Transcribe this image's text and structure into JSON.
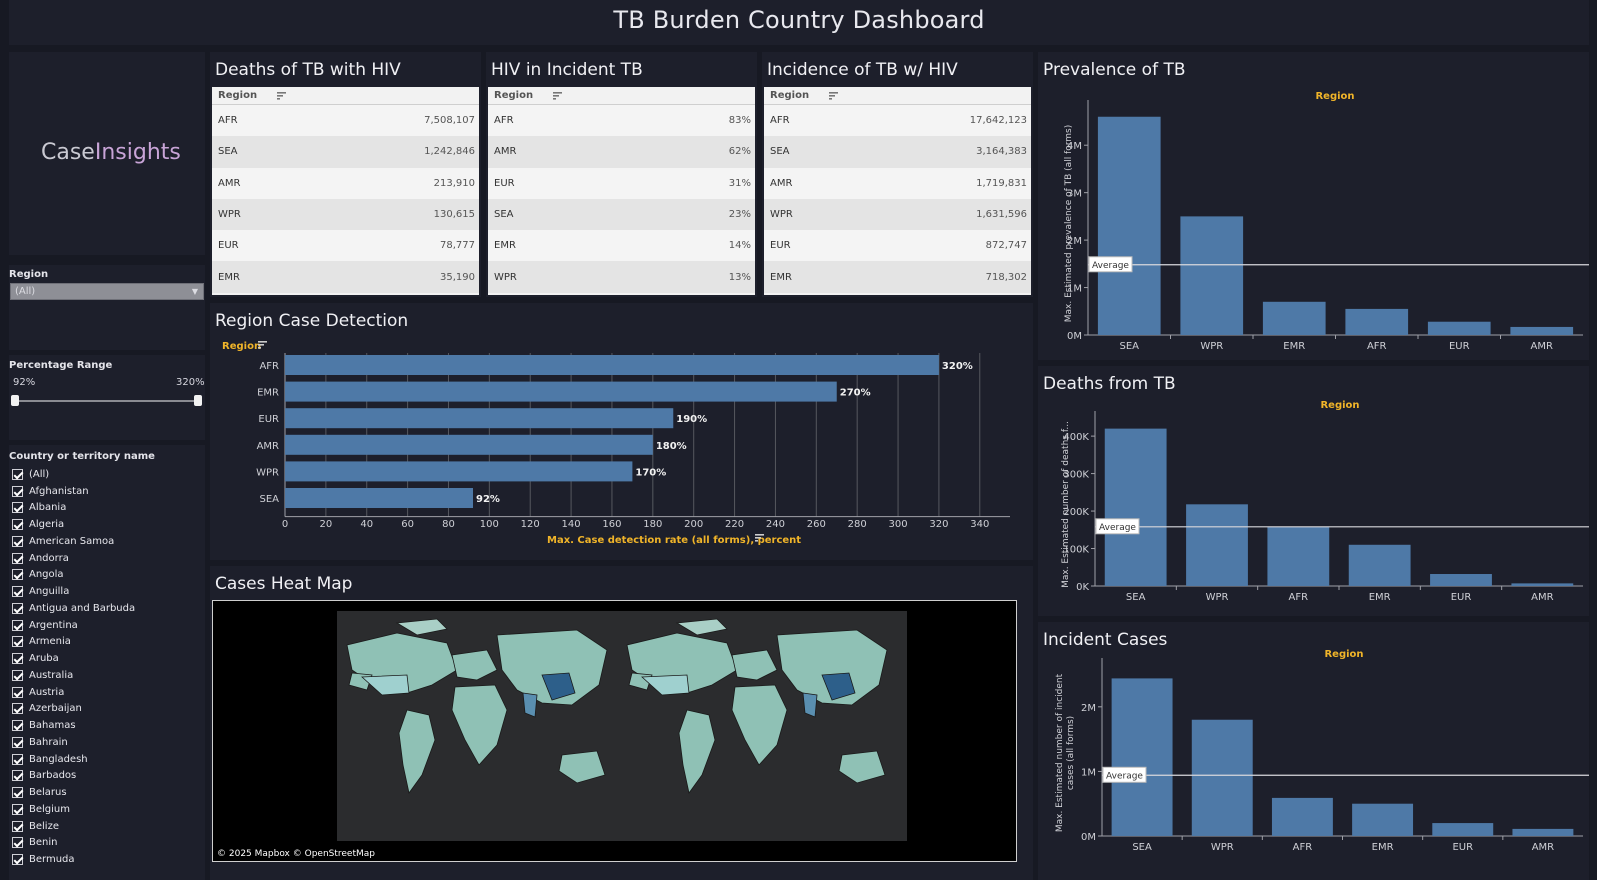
{
  "header": {
    "title": "TB Burden Country Dashboard"
  },
  "logo": {
    "word1": "Case",
    "word2": "Insights"
  },
  "filters": {
    "region_label": "Region",
    "region_value": "(All)",
    "range_label": "Percentage Range",
    "range_min": "92%",
    "range_max": "320%",
    "country_label": "Country or territory name",
    "countries": [
      "(All)",
      "Afghanistan",
      "Albania",
      "Algeria",
      "American Samoa",
      "Andorra",
      "Angola",
      "Anguilla",
      "Antigua and Barbuda",
      "Argentina",
      "Armenia",
      "Aruba",
      "Australia",
      "Austria",
      "Azerbaijan",
      "Bahamas",
      "Bahrain",
      "Bangladesh",
      "Barbados",
      "Belarus",
      "Belgium",
      "Belize",
      "Benin",
      "Bermuda"
    ]
  },
  "tables": [
    {
      "title": "Deaths of TB with HIV",
      "header": "Region",
      "rows": [
        [
          "AFR",
          "7,508,107"
        ],
        [
          "SEA",
          "1,242,846"
        ],
        [
          "AMR",
          "213,910"
        ],
        [
          "WPR",
          "130,615"
        ],
        [
          "EUR",
          "78,777"
        ],
        [
          "EMR",
          "35,190"
        ]
      ]
    },
    {
      "title": "HIV in Incident TB",
      "header": "Region",
      "rows": [
        [
          "AFR",
          "83%"
        ],
        [
          "AMR",
          "62%"
        ],
        [
          "EUR",
          "31%"
        ],
        [
          "SEA",
          "23%"
        ],
        [
          "EMR",
          "14%"
        ],
        [
          "WPR",
          "13%"
        ]
      ]
    },
    {
      "title": "Incidence of TB w/ HIV",
      "header": "Region",
      "rows": [
        [
          "AFR",
          "17,642,123"
        ],
        [
          "SEA",
          "3,164,383"
        ],
        [
          "AMR",
          "1,719,831"
        ],
        [
          "WPR",
          "1,631,596"
        ],
        [
          "EUR",
          "872,747"
        ],
        [
          "EMR",
          "718,302"
        ]
      ]
    }
  ],
  "detection": {
    "title": "Region Case Detection"
  },
  "heatmap": {
    "title": "Cases Heat Map",
    "credit": "© 2025 Mapbox  © OpenStreetMap"
  },
  "colors": {
    "bar": "#4e79a7",
    "accent": "#f0b429",
    "panel": "#1d1f2b",
    "background": "#171923",
    "map_land": "#8fc1b5",
    "map_high": "#2d5f8a"
  },
  "chart_data": [
    {
      "type": "bar",
      "orientation": "horizontal",
      "header_label": "Region",
      "categories": [
        "AFR",
        "EMR",
        "EUR",
        "AMR",
        "WPR",
        "SEA"
      ],
      "values": [
        320,
        270,
        190,
        180,
        170,
        92
      ],
      "value_labels": [
        "320%",
        "270%",
        "190%",
        "180%",
        "170%",
        "92%"
      ],
      "xticks": [
        "0",
        "20",
        "40",
        "60",
        "80",
        "100",
        "120",
        "140",
        "160",
        "180",
        "200",
        "220",
        "240",
        "260",
        "280",
        "300",
        "320",
        "340"
      ],
      "xlim": [
        0,
        345
      ],
      "xlabel": "Max. Case detection rate (all forms), percent",
      "grid": true
    },
    {
      "type": "bar",
      "title": "Prevalence of TB",
      "header_label": "Region",
      "categories": [
        "SEA",
        "WPR",
        "EMR",
        "AFR",
        "EUR",
        "AMR"
      ],
      "values": [
        4600000,
        2500000,
        700000,
        550000,
        280000,
        170000
      ],
      "yticks": [
        [
          "0M",
          0
        ],
        [
          "1M",
          1000000
        ],
        [
          "2M",
          2000000
        ],
        [
          "3M",
          3000000
        ],
        [
          "4M",
          4000000
        ]
      ],
      "ylim": [
        0,
        4700000
      ],
      "ylabel": "Max. Estimated prevalence of TB (all forms)",
      "reference_line": {
        "label": "Average",
        "value": 1480000
      }
    },
    {
      "type": "bar",
      "title": "Deaths from TB",
      "header_label": "Region",
      "categories": [
        "SEA",
        "WPR",
        "AFR",
        "EMR",
        "EUR",
        "AMR"
      ],
      "values": [
        420000,
        218000,
        158000,
        110000,
        32000,
        7000
      ],
      "yticks": [
        [
          "0K",
          0
        ],
        [
          "100K",
          100000
        ],
        [
          "200K",
          200000
        ],
        [
          "300K",
          300000
        ],
        [
          "400K",
          400000
        ]
      ],
      "ylim": [
        0,
        435000
      ],
      "ylabel": "Max. Estimated number of deaths f...",
      "reference_line": {
        "label": "Average",
        "value": 158000
      }
    },
    {
      "type": "bar",
      "title": "Incident Cases",
      "header_label": "Region",
      "categories": [
        "SEA",
        "WPR",
        "AFR",
        "EMR",
        "EUR",
        "AMR"
      ],
      "values": [
        2440000,
        1800000,
        590000,
        500000,
        200000,
        110000
      ],
      "yticks": [
        [
          "0M",
          0
        ],
        [
          "1M",
          1000000
        ],
        [
          "2M",
          2000000
        ]
      ],
      "ylim": [
        0,
        2570000
      ],
      "ylabel": "Max. Estimated number of incident cases (all forms)",
      "reference_line": {
        "label": "Average",
        "value": 940000
      }
    }
  ]
}
